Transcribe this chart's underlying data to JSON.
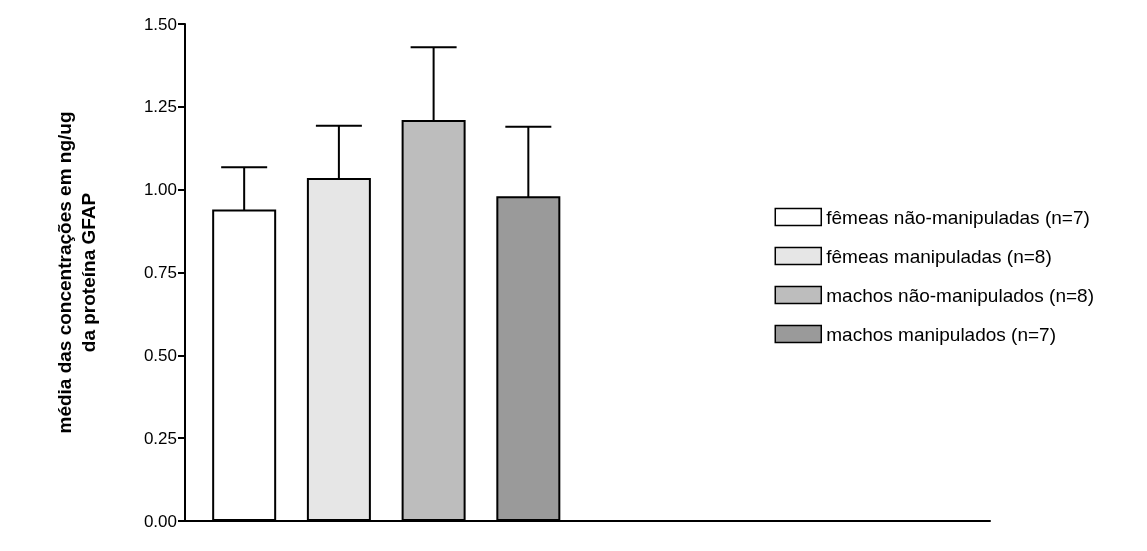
{
  "chart_data": {
    "type": "bar",
    "ylabel": "média das concentrações em ng/ug\nda proteína GFAP",
    "categories": [
      null
    ],
    "series": [
      {
        "name": "fêmeas não-manipuladas (n=7)",
        "color": "#ffffff",
        "values": [
          0.94
        ],
        "errors": [
          0.128
        ]
      },
      {
        "name": "fêmeas manipuladas (n=8)",
        "color": "#e6e6e6",
        "values": [
          1.035
        ],
        "errors": [
          0.158
        ]
      },
      {
        "name": "machos não-manipulados (n=8)",
        "color": "#bdbdbd",
        "values": [
          1.21
        ],
        "errors": [
          0.22
        ]
      },
      {
        "name": "machos manipulados (n=7)",
        "color": "#9a9a9a",
        "values": [
          0.98
        ],
        "errors": [
          0.21
        ]
      }
    ],
    "ylim": [
      0,
      1.5
    ],
    "yticks": [
      {
        "value": 0,
        "label": "0.00"
      },
      0.25,
      {
        "value": 0.5,
        "label": "0.50"
      },
      0.75,
      {
        "value": 1,
        "label": "1.00"
      },
      1.25,
      {
        "value": 1.5,
        "label": "1.50"
      }
    ],
    "grid": false,
    "legend": "right"
  }
}
